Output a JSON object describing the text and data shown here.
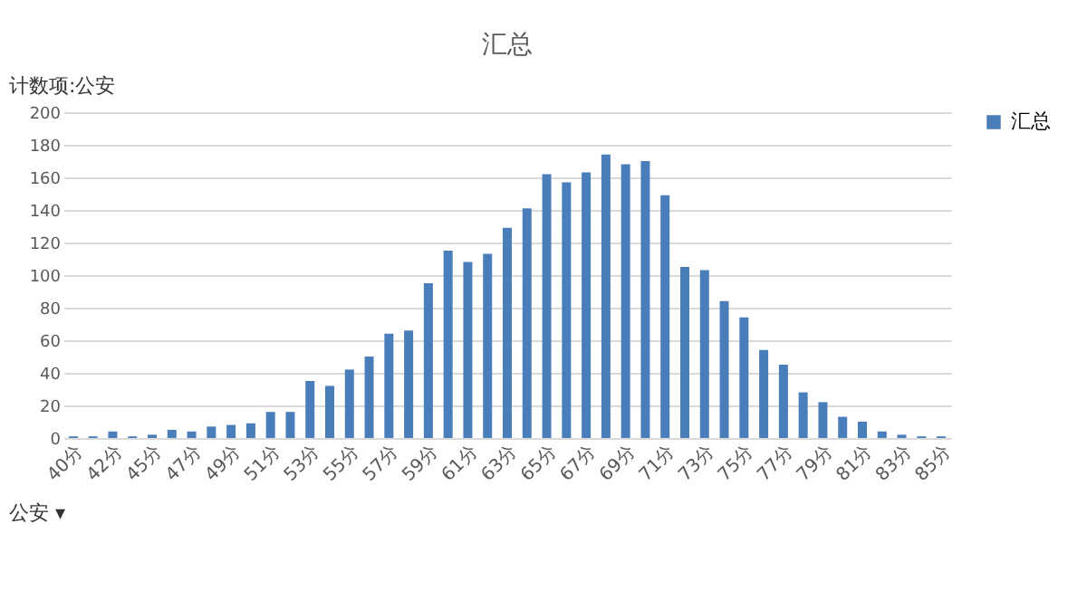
{
  "chart_data": {
    "type": "bar",
    "title": "汇总",
    "categories": [
      "40分",
      null,
      "42分",
      null,
      "45分",
      null,
      "47分",
      null,
      "49分",
      null,
      "51分",
      null,
      "53分",
      null,
      "55分",
      null,
      "57分",
      null,
      "59分",
      null,
      "61分",
      null,
      "63分",
      null,
      "65分",
      null,
      "67分",
      null,
      "69分",
      null,
      "71分",
      null,
      "73分",
      null,
      "75分",
      null,
      "77分",
      null,
      "79分",
      null,
      "81分",
      null,
      "83分",
      null,
      "85分"
    ],
    "series": [
      {
        "name": "汇总",
        "color": "#4a7ebb",
        "values": [
          1,
          1,
          4,
          1,
          2,
          5,
          4,
          7,
          8,
          9,
          16,
          16,
          35,
          32,
          42,
          50,
          64,
          66,
          95,
          115,
          108,
          113,
          129,
          141,
          162,
          157,
          163,
          174,
          168,
          170,
          149,
          105,
          103,
          84,
          74,
          54,
          45,
          28,
          22,
          13,
          10,
          4,
          2,
          1,
          1
        ]
      }
    ],
    "ylim": [
      0,
      200
    ],
    "yticks": [
      0,
      20,
      40,
      60,
      80,
      100,
      120,
      140,
      160,
      180,
      200
    ],
    "grid": "y",
    "legend": "right",
    "annotations": [
      "计数项:公安",
      "公安 ▾"
    ]
  }
}
